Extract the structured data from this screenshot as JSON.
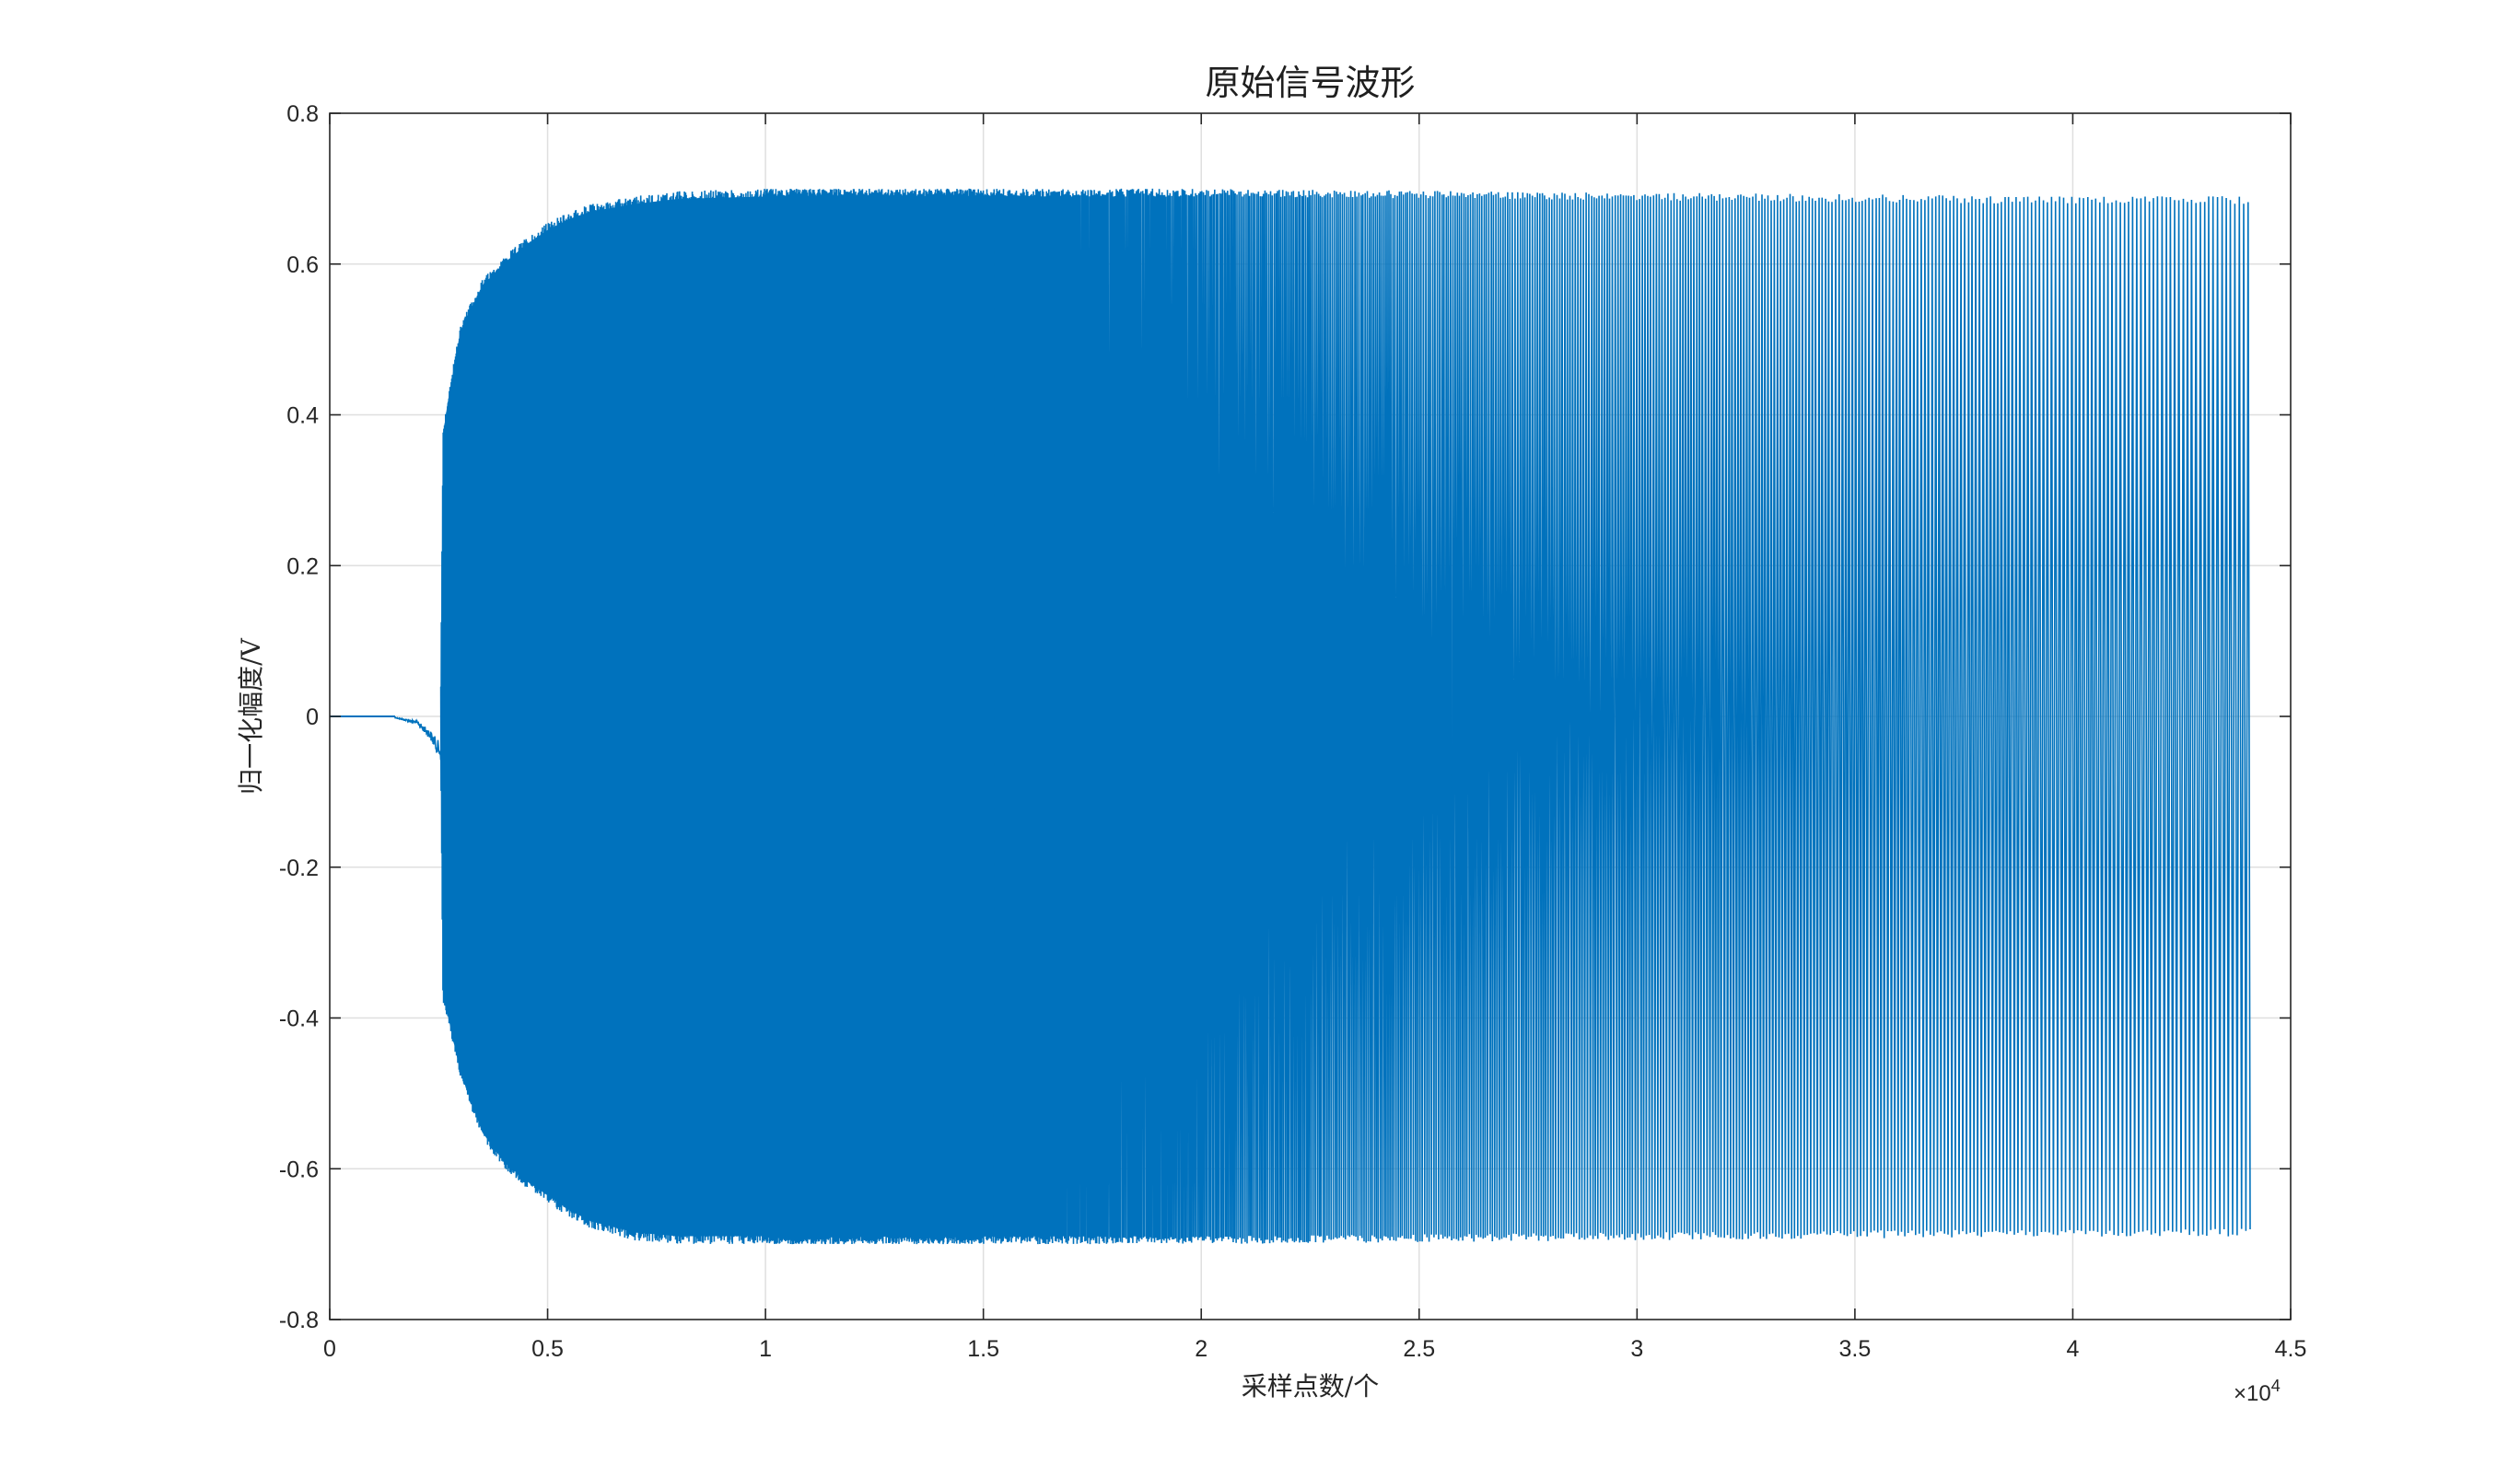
{
  "chart_data": {
    "type": "line",
    "title": "原始信号波形",
    "xlabel": "采样点数/个",
    "ylabel": "归一化幅度/V",
    "x_exponent_label": "×10",
    "x_exponent_power": "4",
    "xlim": [
      0,
      45000
    ],
    "ylim": [
      -0.8,
      0.8
    ],
    "xticks": [
      0,
      5000,
      10000,
      15000,
      20000,
      25000,
      30000,
      35000,
      40000,
      45000
    ],
    "xtick_labels": [
      "0",
      "0.5",
      "1",
      "1.5",
      "2",
      "2.5",
      "3",
      "3.5",
      "4",
      "4.5"
    ],
    "yticks": [
      -0.8,
      -0.6,
      -0.4,
      -0.2,
      0,
      0.2,
      0.4,
      0.6,
      0.8
    ],
    "ytick_labels": [
      "-0.8",
      "-0.6",
      "-0.4",
      "-0.2",
      "0",
      "0.2",
      "0.4",
      "0.6",
      "0.8"
    ],
    "grid": true,
    "series": [
      {
        "color": "#0072BD",
        "x_range": [
          0,
          44100
        ],
        "envelope": [
          {
            "x": 0,
            "upper": 0.0,
            "lower": 0.0
          },
          {
            "x": 1500,
            "upper": 0.002,
            "lower": -0.002
          },
          {
            "x": 2000,
            "upper": 0.01,
            "lower": -0.01
          },
          {
            "x": 2300,
            "upper": 0.025,
            "lower": -0.03
          },
          {
            "x": 2550,
            "upper": 0.04,
            "lower": -0.06
          },
          {
            "x": 2600,
            "upper": 0.38,
            "lower": -0.38
          },
          {
            "x": 2700,
            "upper": 0.42,
            "lower": -0.4
          },
          {
            "x": 3000,
            "upper": 0.52,
            "lower": -0.48
          },
          {
            "x": 3500,
            "upper": 0.58,
            "lower": -0.56
          },
          {
            "x": 4000,
            "upper": 0.61,
            "lower": -0.6
          },
          {
            "x": 4500,
            "upper": 0.635,
            "lower": -0.625
          },
          {
            "x": 5000,
            "upper": 0.655,
            "lower": -0.645
          },
          {
            "x": 5500,
            "upper": 0.67,
            "lower": -0.665
          },
          {
            "x": 6000,
            "upper": 0.68,
            "lower": -0.68
          },
          {
            "x": 7000,
            "upper": 0.69,
            "lower": -0.695
          },
          {
            "x": 8000,
            "upper": 0.697,
            "lower": -0.7
          },
          {
            "x": 10000,
            "upper": 0.7,
            "lower": -0.7
          },
          {
            "x": 20000,
            "upper": 0.7,
            "lower": -0.7
          },
          {
            "x": 30000,
            "upper": 0.695,
            "lower": -0.695
          },
          {
            "x": 40000,
            "upper": 0.69,
            "lower": -0.69
          },
          {
            "x": 44100,
            "upper": 0.69,
            "lower": -0.69
          }
        ]
      }
    ]
  }
}
